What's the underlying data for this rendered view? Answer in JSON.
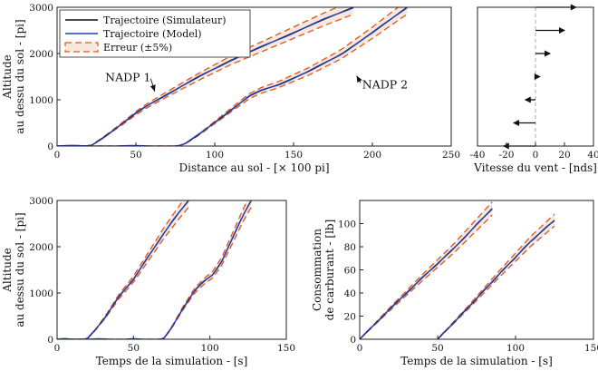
{
  "colors": {
    "simulator": "#111111",
    "model": "#1f3fbf",
    "error": "#e0541c",
    "band": "#f6e8dc",
    "wind_axis": "#aaaaaa"
  },
  "chart_data": [
    {
      "id": "trajectory-distance",
      "type": "line",
      "xlabel": "Distance au sol - [× 100 pi]",
      "ylabel_line1": "Altitude",
      "ylabel_line2": "au dessu du sol - [pi]",
      "xlim": [
        0,
        250
      ],
      "ylim": [
        0,
        3000
      ],
      "xticks": [
        0,
        50,
        100,
        150,
        200,
        250
      ],
      "yticks": [
        0,
        1000,
        2000,
        3000
      ],
      "grid": false,
      "legend": {
        "position": "top-left",
        "entries": [
          "Trajectoire (Simulateur)",
          "Trajectoire (Model)",
          "Erreur (±5%)"
        ]
      },
      "annotations": [
        {
          "text": "NADP 1",
          "x": 45,
          "y": 1400,
          "arrow_to": [
            62,
            1180
          ]
        },
        {
          "text": "NADP 2",
          "x": 208,
          "y": 1250,
          "arrow_to": [
            190,
            1520
          ]
        }
      ],
      "series": [
        {
          "name": "NADP 1",
          "x": [
            0,
            18,
            22,
            30,
            40,
            52,
            60,
            72,
            90,
            110,
            130,
            150,
            170,
            188
          ],
          "y": [
            0,
            0,
            20,
            200,
            450,
            760,
            930,
            1160,
            1500,
            1850,
            2150,
            2450,
            2750,
            3000
          ]
        },
        {
          "name": "NADP 2",
          "x": [
            0,
            75,
            80,
            90,
            102,
            115,
            122,
            130,
            140,
            160,
            180,
            200,
            222
          ],
          "y": [
            0,
            0,
            20,
            250,
            560,
            900,
            1080,
            1210,
            1320,
            1620,
            1980,
            2450,
            3000
          ]
        }
      ]
    },
    {
      "id": "wind-speed",
      "type": "bar",
      "orientation": "horizontal",
      "xlabel": "Vitesse du vent - [nds]",
      "xlim": [
        -40,
        40
      ],
      "xticks": [
        -40,
        -20,
        0,
        20,
        40
      ],
      "ylim": [
        0,
        3000
      ],
      "altitudes": [
        0,
        500,
        1000,
        1500,
        2000,
        2500,
        3000
      ],
      "values": [
        -22,
        -15,
        -7,
        3,
        10,
        20,
        28
      ]
    },
    {
      "id": "trajectory-time",
      "type": "line",
      "xlabel": "Temps de la simulation - [s]",
      "ylabel_line1": "Altitude",
      "ylabel_line2": "au dessu du sol - [pi]",
      "xlim": [
        0,
        150
      ],
      "ylim": [
        0,
        3000
      ],
      "xticks": [
        0,
        50,
        100,
        150
      ],
      "yticks": [
        0,
        1000,
        2000,
        3000
      ],
      "series": [
        {
          "name": "NADP 1",
          "x": [
            0,
            18,
            20,
            25,
            32,
            40,
            50,
            60,
            70,
            80,
            86
          ],
          "y": [
            0,
            0,
            20,
            200,
            500,
            900,
            1300,
            1800,
            2300,
            2750,
            3000
          ]
        },
        {
          "name": "NADP 2",
          "x": [
            0,
            68,
            70,
            75,
            82,
            90,
            96,
            102,
            108,
            115,
            122,
            127
          ],
          "y": [
            0,
            0,
            20,
            250,
            650,
            1050,
            1250,
            1400,
            1700,
            2200,
            2700,
            3000
          ]
        }
      ]
    },
    {
      "id": "fuel-consumption",
      "type": "line",
      "xlabel": "Temps de la simulation - [s]",
      "ylabel_line1": "Consommation",
      "ylabel_line2": "de carburant - [lb]",
      "xlim": [
        0,
        150
      ],
      "ylim": [
        0,
        120
      ],
      "xticks": [
        0,
        50,
        100,
        150
      ],
      "yticks": [
        0,
        20,
        40,
        60,
        80,
        100
      ],
      "series": [
        {
          "name": "NADP 1",
          "x": [
            0,
            20,
            40,
            60,
            85
          ],
          "y": [
            0,
            27,
            53,
            78,
            113
          ]
        },
        {
          "name": "NADP 2",
          "x": [
            50,
            70,
            90,
            110,
            125
          ],
          "y": [
            0,
            28,
            57,
            85,
            103
          ]
        }
      ]
    }
  ]
}
